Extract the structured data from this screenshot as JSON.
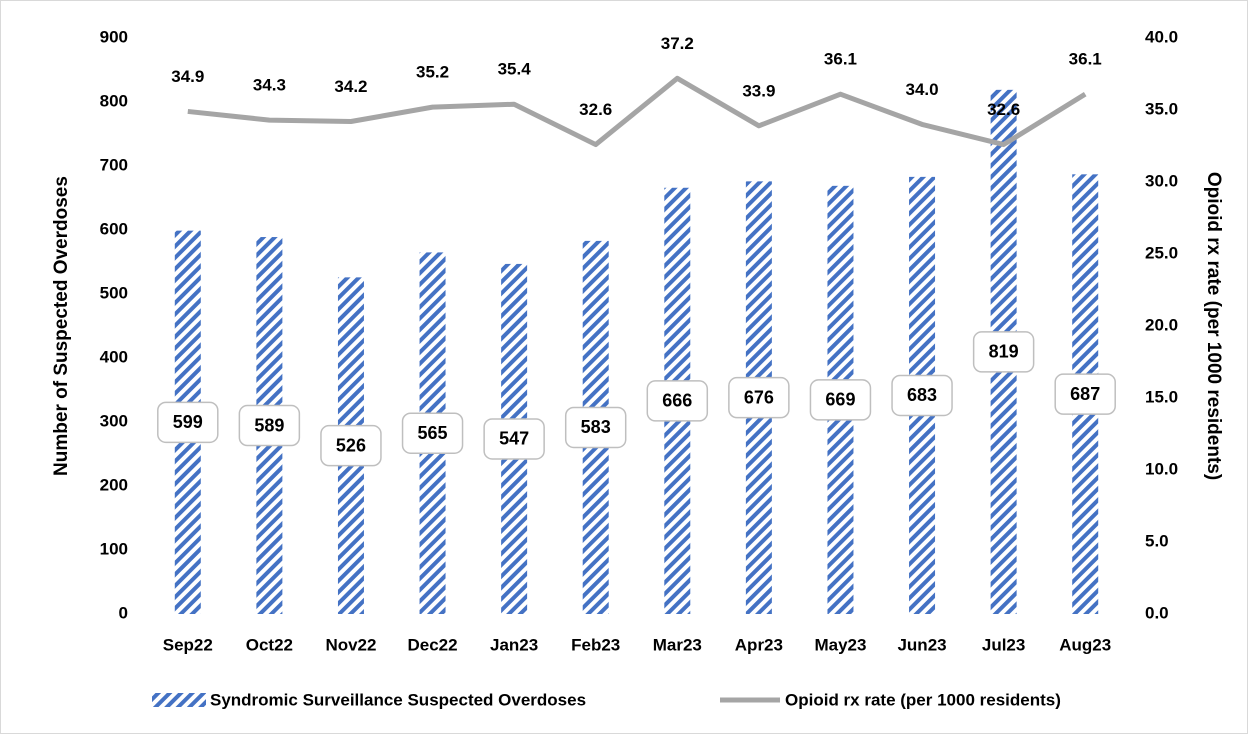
{
  "chart_data": {
    "type": "bar",
    "categories": [
      "Sep22",
      "Oct22",
      "Nov22",
      "Dec22",
      "Jan23",
      "Feb23",
      "Mar23",
      "Apr23",
      "May23",
      "Jun23",
      "Jul23",
      "Aug23"
    ],
    "series": [
      {
        "name": "Syndromic Surveillance Suspected Overdoses",
        "type": "bar",
        "color": "#4472c4",
        "values": [
          599,
          589,
          526,
          565,
          547,
          583,
          666,
          676,
          669,
          683,
          819,
          687
        ]
      },
      {
        "name": "Opioid rx rate (per 1000 residents)",
        "type": "line",
        "axis": "y2",
        "color": "#a5a5a5",
        "values": [
          34.9,
          34.3,
          34.2,
          35.2,
          35.4,
          32.6,
          37.2,
          33.9,
          36.1,
          34.0,
          32.6,
          36.1
        ],
        "value_labels": [
          "34.9",
          "34.3",
          "34.2",
          "35.2",
          "35.4",
          "32.6",
          "37.2",
          "33.9",
          "36.1",
          "34.0",
          "32.6",
          "36.1"
        ]
      }
    ],
    "ylabel": "Number of Suspected Overdoses",
    "y2label": "Opioid rx rate (per 1000 residents)",
    "ylim": [
      0,
      900
    ],
    "yticks": [
      0,
      100,
      200,
      300,
      400,
      500,
      600,
      700,
      800,
      900
    ],
    "y2lim": [
      0,
      40
    ],
    "y2ticks": [
      {
        "value": 0,
        "label": "0.0"
      },
      {
        "value": 5,
        "label": "5.0"
      },
      {
        "value": 10,
        "label": "10.0"
      },
      {
        "value": 15,
        "label": "15.0"
      },
      {
        "value": 20,
        "label": "20.0"
      },
      {
        "value": 25,
        "label": "25.0"
      },
      {
        "value": 30,
        "label": "30.0"
      },
      {
        "value": 35,
        "label": "35.0"
      },
      {
        "value": 40,
        "label": "40.0"
      }
    ],
    "grid": false,
    "legend": "bottom"
  }
}
